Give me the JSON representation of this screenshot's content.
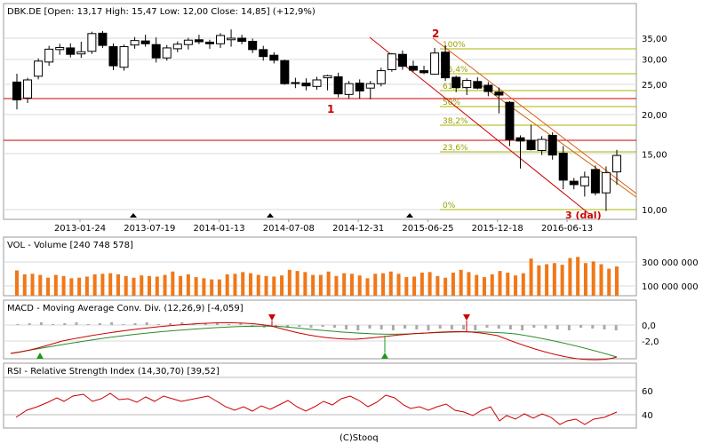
{
  "footer": "(C)Stooq",
  "chart_data": [
    {
      "type": "candlestick",
      "title": "DBK.DE [Open: 13,17  High: 15,47  Low: 12,00  Close: 14,85]  (+12,9%)",
      "yscale": "log",
      "ylim": [
        9.3,
        40
      ],
      "yticks": [
        "35,00",
        "30,00",
        "25,00",
        "20,00",
        "15,00",
        "10,00"
      ],
      "x_labels": [
        "2013-01-24",
        "2013-07-19",
        "2014-01-13",
        "2014-07-08",
        "2014-12-31",
        "2015-06-25",
        "2015-12-18",
        "2016-06-13"
      ],
      "candles": [
        {
          "o": 25.4,
          "h": 27.0,
          "l": 20.8,
          "c": 22.3
        },
        {
          "o": 22.6,
          "h": 26.2,
          "l": 21.8,
          "c": 25.8
        },
        {
          "o": 26.5,
          "h": 30.2,
          "l": 25.9,
          "c": 29.6
        },
        {
          "o": 29.4,
          "h": 33.1,
          "l": 28.6,
          "c": 32.3
        },
        {
          "o": 32.2,
          "h": 33.6,
          "l": 31.0,
          "c": 32.7
        },
        {
          "o": 32.6,
          "h": 33.7,
          "l": 30.4,
          "c": 31.1
        },
        {
          "o": 31.2,
          "h": 34.1,
          "l": 30.3,
          "c": 31.7
        },
        {
          "o": 31.8,
          "h": 36.7,
          "l": 31.2,
          "c": 36.2
        },
        {
          "o": 36.3,
          "h": 36.9,
          "l": 32.6,
          "c": 33.2
        },
        {
          "o": 32.9,
          "h": 33.7,
          "l": 27.7,
          "c": 28.6
        },
        {
          "o": 28.3,
          "h": 33.4,
          "l": 27.6,
          "c": 32.9
        },
        {
          "o": 33.3,
          "h": 35.3,
          "l": 32.4,
          "c": 34.4
        },
        {
          "o": 34.3,
          "h": 35.9,
          "l": 32.9,
          "c": 33.6
        },
        {
          "o": 33.4,
          "h": 35.2,
          "l": 29.3,
          "c": 30.3
        },
        {
          "o": 30.3,
          "h": 33.3,
          "l": 29.7,
          "c": 32.6
        },
        {
          "o": 32.4,
          "h": 34.2,
          "l": 31.6,
          "c": 33.5
        },
        {
          "o": 33.4,
          "h": 35.1,
          "l": 32.2,
          "c": 34.5
        },
        {
          "o": 34.6,
          "h": 35.9,
          "l": 33.5,
          "c": 34.1
        },
        {
          "o": 34.0,
          "h": 34.6,
          "l": 32.4,
          "c": 33.6
        },
        {
          "o": 33.6,
          "h": 36.3,
          "l": 32.6,
          "c": 35.7
        },
        {
          "o": 34.6,
          "h": 37.3,
          "l": 32.9,
          "c": 35.0
        },
        {
          "o": 35.0,
          "h": 35.9,
          "l": 33.5,
          "c": 34.2
        },
        {
          "o": 34.2,
          "h": 34.9,
          "l": 31.4,
          "c": 32.2
        },
        {
          "o": 32.2,
          "h": 33.1,
          "l": 29.7,
          "c": 30.6
        },
        {
          "o": 30.9,
          "h": 31.6,
          "l": 29.1,
          "c": 29.8
        },
        {
          "o": 29.7,
          "h": 29.9,
          "l": 24.9,
          "c": 25.1
        },
        {
          "o": 25.2,
          "h": 26.2,
          "l": 24.3,
          "c": 25.3
        },
        {
          "o": 25.2,
          "h": 26.1,
          "l": 23.9,
          "c": 24.7
        },
        {
          "o": 24.6,
          "h": 26.4,
          "l": 24.0,
          "c": 25.8
        },
        {
          "o": 26.2,
          "h": 26.8,
          "l": 23.9,
          "c": 26.6
        },
        {
          "o": 26.4,
          "h": 27.2,
          "l": 22.7,
          "c": 23.3
        },
        {
          "o": 23.2,
          "h": 25.6,
          "l": 22.5,
          "c": 25.1
        },
        {
          "o": 25.2,
          "h": 25.9,
          "l": 22.5,
          "c": 23.8
        },
        {
          "o": 24.3,
          "h": 25.6,
          "l": 22.4,
          "c": 25.1
        },
        {
          "o": 25.1,
          "h": 28.2,
          "l": 24.6,
          "c": 27.6
        },
        {
          "o": 27.8,
          "h": 31.4,
          "l": 27.4,
          "c": 31.2
        },
        {
          "o": 31.1,
          "h": 32.0,
          "l": 27.8,
          "c": 28.5
        },
        {
          "o": 28.5,
          "h": 29.7,
          "l": 27.4,
          "c": 27.7
        },
        {
          "o": 27.6,
          "h": 28.6,
          "l": 26.9,
          "c": 27.2
        },
        {
          "o": 26.9,
          "h": 32.6,
          "l": 26.8,
          "c": 31.4
        },
        {
          "o": 31.6,
          "h": 33.2,
          "l": 25.6,
          "c": 26.2
        },
        {
          "o": 26.3,
          "h": 26.6,
          "l": 23.6,
          "c": 24.4
        },
        {
          "o": 24.4,
          "h": 26.1,
          "l": 23.1,
          "c": 25.7
        },
        {
          "o": 25.5,
          "h": 26.3,
          "l": 24.1,
          "c": 24.3
        },
        {
          "o": 24.8,
          "h": 25.4,
          "l": 22.9,
          "c": 23.7
        },
        {
          "o": 23.6,
          "h": 24.4,
          "l": 20.2,
          "c": 23.1
        },
        {
          "o": 21.9,
          "h": 22.1,
          "l": 15.9,
          "c": 16.7
        },
        {
          "o": 16.9,
          "h": 17.2,
          "l": 13.5,
          "c": 16.5
        },
        {
          "o": 16.6,
          "h": 18.6,
          "l": 15.4,
          "c": 15.5
        },
        {
          "o": 15.4,
          "h": 17.1,
          "l": 14.9,
          "c": 16.7
        },
        {
          "o": 17.2,
          "h": 17.6,
          "l": 14.4,
          "c": 14.9
        },
        {
          "o": 15.1,
          "h": 15.9,
          "l": 11.6,
          "c": 12.4
        },
        {
          "o": 12.3,
          "h": 12.6,
          "l": 11.6,
          "c": 12.0
        },
        {
          "o": 11.9,
          "h": 13.2,
          "l": 11.0,
          "c": 12.7
        },
        {
          "o": 13.4,
          "h": 13.8,
          "l": 11.1,
          "c": 11.3
        },
        {
          "o": 11.3,
          "h": 13.7,
          "l": 9.9,
          "c": 13.1
        },
        {
          "o": 13.17,
          "h": 15.47,
          "l": 12.0,
          "c": 14.85
        }
      ],
      "markers": [
        "1",
        "2",
        "3 (dal)"
      ],
      "fibonacci": [
        "100%",
        "76,4%",
        "61,8%",
        "50%",
        "38,2%",
        "23,6%",
        "0%"
      ]
    },
    {
      "type": "bar",
      "title": "VOL - Volume [240 748 578]",
      "yticks": [
        "300 000 000",
        "100 000 000"
      ],
      "values": [
        225,
        190,
        195,
        185,
        160,
        185,
        175,
        155,
        160,
        170,
        190,
        195,
        200,
        190,
        175,
        160,
        180,
        175,
        170,
        185,
        215,
        175,
        190,
        165,
        155,
        145,
        145,
        190,
        195,
        210,
        200,
        185,
        175,
        170,
        180,
        230,
        220,
        210,
        185,
        185,
        215,
        175,
        200,
        195,
        180,
        155,
        195,
        200,
        215,
        195,
        165,
        170,
        205,
        210,
        175,
        160,
        205,
        230,
        210,
        185,
        165,
        190,
        220,
        205,
        180,
        200,
        330,
        270,
        280,
        290,
        275,
        335,
        345,
        290,
        305,
        280,
        240,
        260
      ]
    },
    {
      "type": "line",
      "title": "MACD - Moving Average Conv. Div. (12,26,9) [-4,059]",
      "yticks": [
        "0,0",
        "-2,0"
      ]
    },
    {
      "type": "line",
      "title": "RSI - Relative Strength Index (14,30,70) [39,52]",
      "yticks": [
        "60",
        "40"
      ]
    }
  ]
}
